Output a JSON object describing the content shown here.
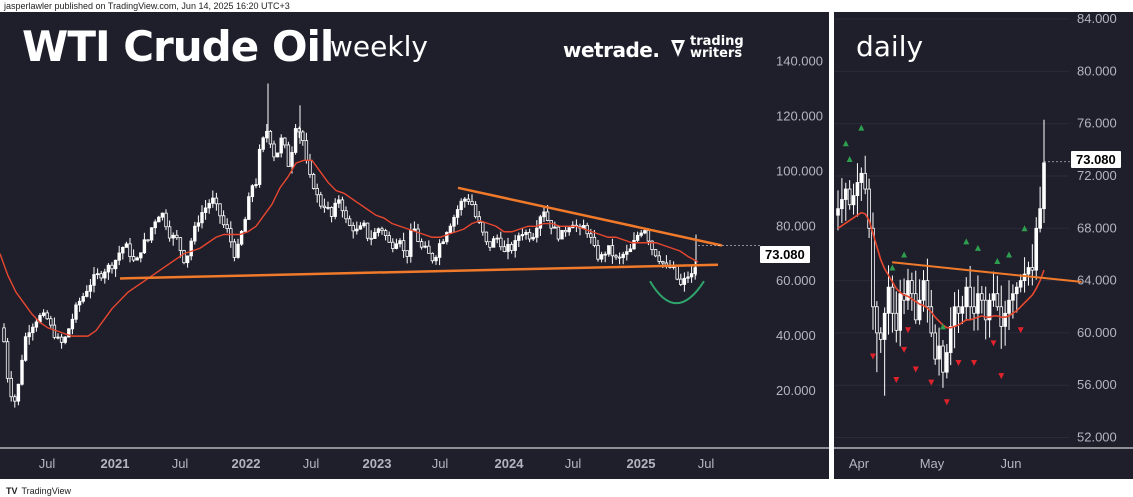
{
  "header_text": "jasperlawler published on TradingView.com, Jun 14, 2025 16:20 UTC+3",
  "footer_text": "TradingView",
  "footer_logo": "TV",
  "brands": {
    "wetrade": "wetrade.",
    "trading_writers_line1": "trading",
    "trading_writers_line2": "writers"
  },
  "colors": {
    "background": "#1f1f2c",
    "up_candle": "#ffffff",
    "down_candle": "#ffffff",
    "moving_average": "#e8472e",
    "trendline": "#f07a2a",
    "cup_curve": "#2ea36b",
    "up_marker": "#2e9e4f",
    "down_marker": "#e0222b",
    "axis_text": "#b2b5be"
  },
  "chart_data": [
    {
      "panel": "weekly",
      "type": "candlestick",
      "title": "WTI Crude Oil",
      "subtitle": "weekly",
      "x_ticks": [
        "Jul",
        "2021",
        "Jul",
        "2022",
        "Jul",
        "2023",
        "Jul",
        "2024",
        "Jul",
        "2025",
        "Jul"
      ],
      "y_ticks": [
        "140.000",
        "120.000",
        "100.000",
        "80.000",
        "60.000",
        "40.000",
        "20.000"
      ],
      "ylim": [
        0,
        150
      ],
      "last_price": "73.080",
      "close_path": [
        [
          0,
          43
        ],
        [
          4,
          38
        ],
        [
          8,
          24
        ],
        [
          12,
          18
        ],
        [
          16,
          16
        ],
        [
          20,
          26
        ],
        [
          24,
          38
        ],
        [
          28,
          42
        ],
        [
          32,
          44
        ],
        [
          36,
          46
        ],
        [
          40,
          47
        ],
        [
          44,
          47
        ],
        [
          48,
          46
        ],
        [
          52,
          42
        ],
        [
          56,
          40
        ],
        [
          60,
          37
        ],
        [
          64,
          38
        ],
        [
          68,
          42
        ],
        [
          72,
          46
        ],
        [
          76,
          50
        ],
        [
          80,
          53
        ],
        [
          84,
          55
        ],
        [
          88,
          58
        ],
        [
          92,
          60
        ],
        [
          96,
          62
        ],
        [
          100,
          62
        ],
        [
          104,
          64
        ],
        [
          108,
          65
        ],
        [
          112,
          66
        ],
        [
          116,
          68
        ],
        [
          120,
          71
        ],
        [
          124,
          73
        ],
        [
          128,
          72
        ],
        [
          132,
          68
        ],
        [
          136,
          66
        ],
        [
          140,
          71
        ],
        [
          144,
          74
        ],
        [
          148,
          75
        ],
        [
          152,
          80
        ],
        [
          156,
          83
        ],
        [
          160,
          85
        ],
        [
          164,
          84
        ],
        [
          168,
          78
        ],
        [
          172,
          76
        ],
        [
          176,
          76
        ],
        [
          180,
          72
        ],
        [
          184,
          68
        ],
        [
          188,
          70
        ],
        [
          192,
          76
        ],
        [
          196,
          80
        ],
        [
          200,
          84
        ],
        [
          204,
          86
        ],
        [
          208,
          88
        ],
        [
          212,
          90
        ],
        [
          216,
          87
        ],
        [
          220,
          84
        ],
        [
          224,
          80
        ],
        [
          228,
          78
        ],
        [
          232,
          73
        ],
        [
          236,
          68
        ],
        [
          240,
          76
        ],
        [
          244,
          80
        ],
        [
          248,
          88
        ],
        [
          252,
          95
        ],
        [
          256,
          96
        ],
        [
          260,
          108
        ],
        [
          264,
          112
        ],
        [
          268,
          116
        ],
        [
          272,
          108
        ],
        [
          276,
          104
        ],
        [
          280,
          112
        ],
        [
          284,
          110
        ],
        [
          288,
          102
        ],
        [
          292,
          108
        ],
        [
          296,
          118
        ],
        [
          300,
          114
        ],
        [
          304,
          110
        ],
        [
          308,
          98
        ],
        [
          312,
          97
        ],
        [
          316,
          92
        ],
        [
          320,
          88
        ],
        [
          324,
          88
        ],
        [
          328,
          86
        ],
        [
          332,
          83
        ],
        [
          336,
          88
        ],
        [
          340,
          91
        ],
        [
          344,
          84
        ],
        [
          348,
          80
        ],
        [
          352,
          80
        ],
        [
          356,
          78
        ],
        [
          360,
          79
        ],
        [
          364,
          80
        ],
        [
          368,
          76
        ],
        [
          372,
          76
        ],
        [
          376,
          78
        ],
        [
          380,
          80
        ],
        [
          384,
          78
        ],
        [
          388,
          74
        ],
        [
          392,
          73
        ],
        [
          396,
          75
        ],
        [
          400,
          76
        ],
        [
          404,
          70
        ],
        [
          408,
          70
        ],
        [
          412,
          80
        ],
        [
          416,
          78
        ],
        [
          420,
          72
        ],
        [
          424,
          72
        ],
        [
          428,
          70
        ],
        [
          432,
          68
        ],
        [
          436,
          70
        ],
        [
          440,
          74
        ],
        [
          444,
          76
        ],
        [
          448,
          80
        ],
        [
          452,
          82
        ],
        [
          456,
          85
        ],
        [
          460,
          88
        ],
        [
          464,
          90
        ],
        [
          468,
          90
        ],
        [
          472,
          88
        ],
        [
          476,
          83
        ],
        [
          480,
          80
        ],
        [
          484,
          76
        ],
        [
          488,
          72
        ],
        [
          492,
          74
        ],
        [
          496,
          76
        ],
        [
          500,
          75
        ],
        [
          504,
          70
        ],
        [
          508,
          72
        ],
        [
          512,
          72
        ],
        [
          516,
          74
        ],
        [
          520,
          78
        ],
        [
          524,
          78
        ],
        [
          528,
          77
        ],
        [
          532,
          76
        ],
        [
          536,
          80
        ],
        [
          540,
          84
        ],
        [
          544,
          86
        ],
        [
          548,
          82
        ],
        [
          552,
          80
        ],
        [
          556,
          78
        ],
        [
          560,
          76
        ],
        [
          564,
          78
        ],
        [
          568,
          80
        ],
        [
          572,
          82
        ],
        [
          576,
          80
        ],
        [
          580,
          78
        ],
        [
          584,
          80
        ],
        [
          588,
          78
        ],
        [
          592,
          74
        ],
        [
          596,
          70
        ],
        [
          600,
          68
        ],
        [
          604,
          70
        ],
        [
          608,
          72
        ],
        [
          612,
          70
        ],
        [
          616,
          68
        ],
        [
          620,
          68
        ],
        [
          624,
          70
        ],
        [
          628,
          70
        ],
        [
          632,
          72
        ],
        [
          636,
          76
        ],
        [
          640,
          78
        ],
        [
          644,
          80
        ],
        [
          648,
          76
        ],
        [
          652,
          72
        ],
        [
          656,
          70
        ],
        [
          660,
          68
        ],
        [
          664,
          66
        ],
        [
          668,
          64
        ],
        [
          672,
          66
        ],
        [
          676,
          62
        ],
        [
          680,
          58
        ],
        [
          684,
          60
        ],
        [
          688,
          62
        ],
        [
          692,
          62
        ],
        [
          696,
          66
        ],
        [
          698,
          73
        ]
      ],
      "moving_average_path": [
        [
          0,
          70
        ],
        [
          8,
          62
        ],
        [
          16,
          56
        ],
        [
          24,
          52
        ],
        [
          32,
          48
        ],
        [
          40,
          45
        ],
        [
          48,
          43
        ],
        [
          56,
          42
        ],
        [
          64,
          41
        ],
        [
          72,
          40
        ],
        [
          80,
          40
        ],
        [
          88,
          40
        ],
        [
          96,
          42
        ],
        [
          104,
          46
        ],
        [
          112,
          50
        ],
        [
          120,
          53
        ],
        [
          128,
          56
        ],
        [
          136,
          58
        ],
        [
          144,
          60
        ],
        [
          152,
          62
        ],
        [
          160,
          64
        ],
        [
          168,
          66
        ],
        [
          176,
          68
        ],
        [
          184,
          70
        ],
        [
          192,
          71
        ],
        [
          200,
          72
        ],
        [
          208,
          74
        ],
        [
          216,
          76
        ],
        [
          224,
          77
        ],
        [
          232,
          77
        ],
        [
          240,
          77
        ],
        [
          248,
          78
        ],
        [
          256,
          80
        ],
        [
          264,
          84
        ],
        [
          272,
          88
        ],
        [
          280,
          94
        ],
        [
          288,
          98
        ],
        [
          296,
          103
        ],
        [
          304,
          104
        ],
        [
          312,
          104
        ],
        [
          320,
          100
        ],
        [
          328,
          96
        ],
        [
          336,
          93
        ],
        [
          344,
          92
        ],
        [
          352,
          90
        ],
        [
          360,
          88
        ],
        [
          368,
          86
        ],
        [
          376,
          84
        ],
        [
          384,
          83
        ],
        [
          392,
          81
        ],
        [
          400,
          80
        ],
        [
          408,
          79
        ],
        [
          416,
          78
        ],
        [
          424,
          77
        ],
        [
          432,
          76
        ],
        [
          440,
          76
        ],
        [
          448,
          77
        ],
        [
          456,
          78
        ],
        [
          464,
          79
        ],
        [
          472,
          81
        ],
        [
          480,
          82
        ],
        [
          488,
          81
        ],
        [
          496,
          80
        ],
        [
          504,
          78
        ],
        [
          512,
          78
        ],
        [
          520,
          79
        ],
        [
          528,
          80
        ],
        [
          536,
          80
        ],
        [
          544,
          81
        ],
        [
          552,
          81
        ],
        [
          560,
          80
        ],
        [
          568,
          80
        ],
        [
          576,
          80
        ],
        [
          584,
          79
        ],
        [
          592,
          78
        ],
        [
          600,
          77
        ],
        [
          608,
          76
        ],
        [
          616,
          76
        ],
        [
          624,
          75
        ],
        [
          632,
          74
        ],
        [
          640,
          74
        ],
        [
          648,
          74
        ],
        [
          656,
          74
        ],
        [
          664,
          73
        ],
        [
          672,
          72
        ],
        [
          680,
          71
        ],
        [
          688,
          69
        ],
        [
          698,
          67
        ]
      ],
      "upper_trendline": [
        [
          458,
          94
        ],
        [
          722,
          73
        ]
      ],
      "lower_trendline": [
        [
          120,
          61
        ],
        [
          718,
          66
        ]
      ],
      "cup_curve": [
        [
          650,
          60
        ],
        [
          676,
          52
        ],
        [
          704,
          60
        ]
      ]
    },
    {
      "panel": "daily",
      "type": "candlestick",
      "title": "daily",
      "x_ticks": [
        "Apr",
        "May",
        "Jun"
      ],
      "y_ticks": [
        "84.000",
        "80.000",
        "76.000",
        "72.000",
        "68.000",
        "64.000",
        "60.000",
        "56.000",
        "52.000"
      ],
      "ylim": [
        50,
        85
      ],
      "last_price": "73.080",
      "closes": [
        69.5,
        70.2,
        71.0,
        69.8,
        70.5,
        71.5,
        72.2,
        71.0,
        68.0,
        62.0,
        60.0,
        59.5,
        61.5,
        63.5,
        61.5,
        60.2,
        63.0,
        62.5,
        64.0,
        63.0,
        61.0,
        62.5,
        64.0,
        62.0,
        60.0,
        58.0,
        59.0,
        57.0,
        58.5,
        60.5,
        62.0,
        61.5,
        62.0,
        63.5,
        62.0,
        61.5,
        63.0,
        62.5,
        61.0,
        62.5,
        63.0,
        62.0,
        60.5,
        61.5,
        62.5,
        63.0,
        63.5,
        64.0,
        64.5,
        65.0,
        64.8,
        68.0,
        69.5,
        73.0
      ],
      "moving_average": [
        68.0,
        68.2,
        68.4,
        68.6,
        68.8,
        69.0,
        69.2,
        69.1,
        68.6,
        67.6,
        66.6,
        65.6,
        64.9,
        64.4,
        63.9,
        63.4,
        63.1,
        62.9,
        62.8,
        62.6,
        62.4,
        62.2,
        62.1,
        61.9,
        61.6,
        61.2,
        60.9,
        60.6,
        60.4,
        60.4,
        60.5,
        60.6,
        60.8,
        61.0,
        61.0,
        61.1,
        61.2,
        61.3,
        61.2,
        61.2,
        61.3,
        61.3,
        61.2,
        61.2,
        61.3,
        61.5,
        61.7,
        62.0,
        62.3,
        62.6,
        62.9,
        63.4,
        64.0,
        64.8
      ],
      "trendline": [
        [
          65.4,
          0.22
        ],
        [
          63.9,
          0.99
        ]
      ],
      "up_marker_indices": [
        2,
        3,
        6,
        14,
        17,
        27,
        33,
        36,
        41,
        44,
        48
      ],
      "down_marker_indices": [
        9,
        15,
        17,
        18,
        20,
        24,
        28,
        31,
        35,
        40,
        42,
        47
      ]
    }
  ]
}
